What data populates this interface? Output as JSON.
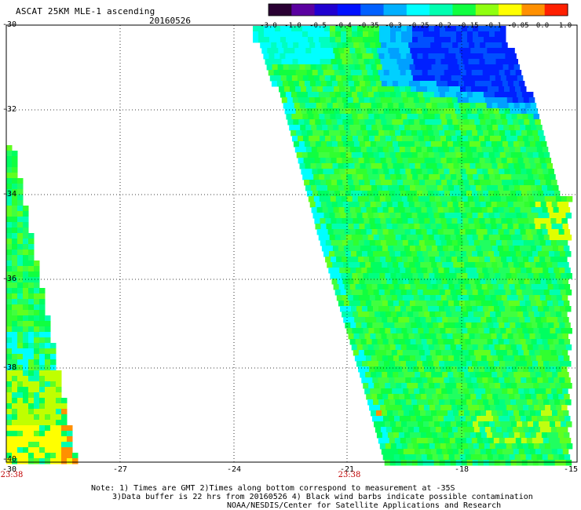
{
  "header": {
    "title": "ASCAT 25KM MLE-1 ascending",
    "date": "20160526"
  },
  "colorbar": {
    "tick_labels": [
      "-3.0",
      "-1.0",
      "-0.5",
      "-0.4",
      "-0.35",
      "-0.3",
      "-0.25",
      "-0.2",
      "-0.15",
      "-0.1",
      "-0.05",
      "0.0",
      "1.0"
    ],
    "colors": [
      "#2a0033",
      "#5a00a0",
      "#2000d0",
      "#0010ff",
      "#0060ff",
      "#00b0ff",
      "#00ffff",
      "#00ffb0",
      "#10ff40",
      "#90ff10",
      "#ffff00",
      "#ff9000",
      "#ff2000"
    ]
  },
  "axes": {
    "lat_labels": [
      "-30",
      "-32",
      "-34",
      "-36",
      "-38",
      "-40"
    ],
    "lon_labels": [
      "-30",
      "-27",
      "-24",
      "-21",
      "-18",
      "-15"
    ],
    "time_labels": [
      "23:38",
      "23:38"
    ]
  },
  "swaths": {
    "west_dominant_color": "#10ff40",
    "east_dominant_color": "#20ff50"
  },
  "notes": {
    "line1": "Note: 1) Times are GMT 2)Times along bottom correspond to measurement at -35S",
    "line2": "3)Data buffer is 22 hrs from 20160526 4) Black wind barbs indicate possible contamination",
    "line3": "NOAA/NESDIS/Center for Satellite Applications and Research"
  }
}
